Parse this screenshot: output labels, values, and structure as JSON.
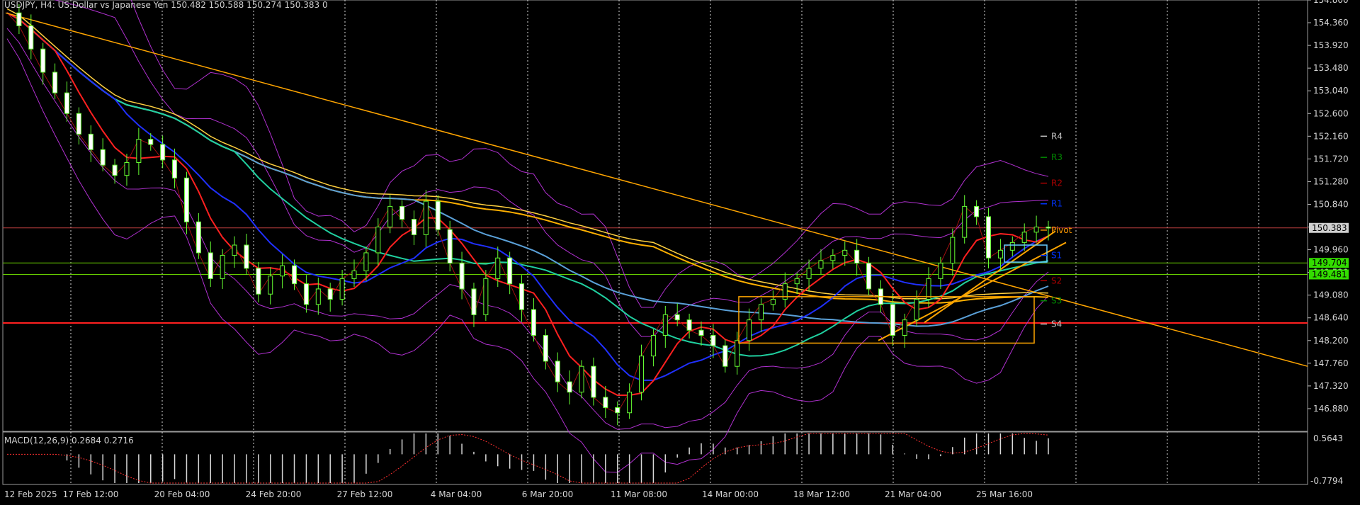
{
  "header": {
    "title": "USDJPY, H4:  US Dollar vs Japanese Yen  150.482 150.588 150.274 150.383  0"
  },
  "macd": {
    "label": "MACD(12,26,9) 0.2684 0.2716",
    "axis": {
      "top": "0.5643",
      "bottom": "-0.7794"
    },
    "range": [
      -0.7794,
      0.5643
    ]
  },
  "chart_data": {
    "type": "candlestick",
    "symbol": "USDJPY",
    "timeframe": "H4",
    "ylim": [
      146.44,
      154.8
    ],
    "price_ticks": [
      "154.800",
      "154.360",
      "153.920",
      "153.480",
      "153.040",
      "152.600",
      "152.160",
      "151.720",
      "151.280",
      "150.840",
      "150.400",
      "149.960",
      "149.520",
      "149.080",
      "148.640",
      "148.200",
      "147.760",
      "147.320",
      "146.880"
    ],
    "time_ticks": [
      "12 Feb 2025",
      "17 Feb 12:00",
      "20 Feb 04:00",
      "24 Feb 20:00",
      "27 Feb 12:00",
      "4 Mar 04:00",
      "6 Mar 20:00",
      "11 Mar 08:00",
      "14 Mar 00:00",
      "18 Mar 12:00",
      "21 Mar 04:00",
      "25 Mar 16:00"
    ],
    "last_price": "150.383",
    "price_tags": [
      "149.704",
      "149.481"
    ],
    "pivot_levels": [
      {
        "name": "R4",
        "value": 152.16,
        "color": "#c0c0c0"
      },
      {
        "name": "R3",
        "value": 151.75,
        "color": "#008800"
      },
      {
        "name": "R2",
        "value": 151.25,
        "color": "#aa0000"
      },
      {
        "name": "R1",
        "value": 150.85,
        "color": "#0033ff"
      },
      {
        "name": "Pivot",
        "value": 150.34,
        "color": "#ff9900"
      },
      {
        "name": "S1",
        "value": 149.85,
        "color": "#0033ff"
      },
      {
        "name": "S2",
        "value": 149.36,
        "color": "#aa0000"
      },
      {
        "name": "S3",
        "value": 148.97,
        "color": "#008800"
      },
      {
        "name": "S4",
        "value": 148.52,
        "color": "#c0c0c0"
      }
    ],
    "horizontal_lines": [
      {
        "value": 150.383,
        "color": "#c04040"
      },
      {
        "value": 149.704,
        "color": "#66cc00"
      },
      {
        "value": 149.481,
        "color": "#66cc00"
      },
      {
        "value": 148.54,
        "color": "#ff2020"
      }
    ],
    "close_path": [
      154.55,
      154.3,
      153.85,
      153.4,
      153.0,
      152.6,
      152.2,
      151.9,
      151.6,
      151.4,
      151.65,
      152.1,
      152.0,
      151.7,
      151.35,
      150.5,
      149.9,
      149.4,
      149.85,
      150.05,
      149.6,
      149.1,
      149.45,
      149.65,
      149.3,
      148.9,
      149.2,
      149.0,
      149.4,
      149.55,
      149.9,
      150.4,
      150.8,
      150.55,
      150.25,
      150.9,
      150.35,
      149.7,
      149.2,
      148.7,
      149.4,
      149.8,
      149.3,
      148.8,
      148.3,
      147.8,
      147.4,
      147.2,
      147.7,
      147.1,
      146.9,
      146.8,
      147.2,
      147.9,
      148.3,
      148.7,
      148.6,
      148.4,
      148.3,
      148.1,
      147.7,
      148.2,
      148.6,
      148.9,
      149.0,
      149.3,
      149.4,
      149.6,
      149.75,
      149.85,
      149.95,
      149.7,
      149.2,
      148.9,
      148.3,
      148.6,
      149.0,
      149.4,
      149.7,
      150.2,
      150.8,
      150.6,
      149.8,
      149.95,
      150.1,
      150.3,
      150.4,
      150.38
    ]
  }
}
